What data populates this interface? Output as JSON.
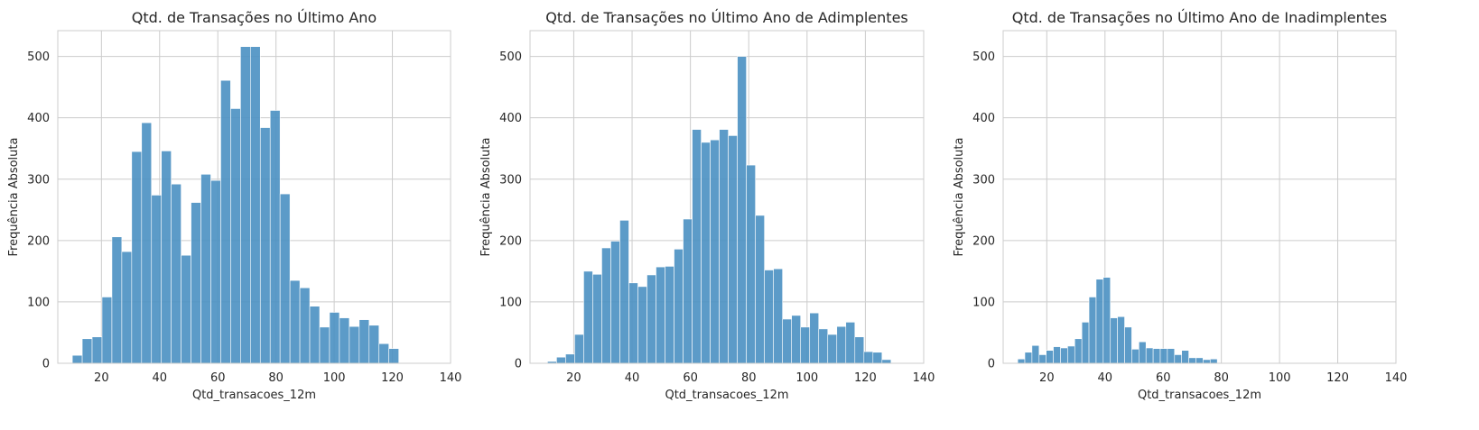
{
  "chart_data": [
    {
      "type": "bar",
      "title": "Qtd. de Transações no Último Ano",
      "xlabel": "Qtd_transacoes_12m",
      "ylabel": "Frequência Absoluta",
      "xlim": [
        5,
        140
      ],
      "ylim": [
        0,
        542
      ],
      "xticks": [
        20,
        40,
        60,
        80,
        100,
        120,
        140
      ],
      "yticks": [
        0,
        100,
        200,
        300,
        400,
        500
      ],
      "bin_start": 10,
      "bin_width": 3.4,
      "color": "#4a90c2",
      "grid": true,
      "values": [
        13,
        40,
        43,
        108,
        206,
        182,
        345,
        392,
        274,
        346,
        292,
        176,
        262,
        308,
        298,
        461,
        415,
        516,
        516,
        384,
        412,
        276,
        135,
        123,
        93,
        59,
        83,
        74,
        60,
        71,
        62,
        32,
        24
      ]
    },
    {
      "type": "bar",
      "title": "Qtd. de Transações no Último Ano de Adimplentes",
      "xlabel": "Qtd_transacoes_12m",
      "ylabel": "Frequência Absoluta",
      "xlim": [
        5,
        140
      ],
      "ylim": [
        0,
        542
      ],
      "xticks": [
        20,
        40,
        60,
        80,
        100,
        120,
        140
      ],
      "yticks": [
        0,
        100,
        200,
        300,
        400,
        500
      ],
      "bin_start": 11,
      "bin_width": 3.1,
      "color": "#4a90c2",
      "grid": true,
      "values": [
        3,
        10,
        15,
        47,
        150,
        145,
        188,
        199,
        233,
        131,
        125,
        144,
        157,
        158,
        186,
        235,
        381,
        360,
        364,
        381,
        371,
        500,
        323,
        241,
        152,
        154,
        72,
        78,
        59,
        82,
        56,
        47,
        60,
        67,
        43,
        19,
        18,
        6
      ]
    },
    {
      "type": "bar",
      "title": "Qtd. de Transações no Último Ano de Inadimplentes",
      "xlabel": "Qtd_transacoes_12m",
      "ylabel": "Frequência Absoluta",
      "xlim": [
        5,
        140
      ],
      "ylim": [
        0,
        542
      ],
      "xticks": [
        20,
        40,
        60,
        80,
        100,
        120,
        140
      ],
      "yticks": [
        0,
        100,
        200,
        300,
        400,
        500
      ],
      "bin_start": 10,
      "bin_width": 2.45,
      "color": "#4a90c2",
      "grid": true,
      "values": [
        7,
        18,
        29,
        14,
        21,
        27,
        25,
        28,
        40,
        67,
        108,
        137,
        140,
        74,
        76,
        59,
        23,
        35,
        25,
        24,
        24,
        24,
        14,
        21,
        9,
        9,
        6,
        7
      ]
    }
  ]
}
